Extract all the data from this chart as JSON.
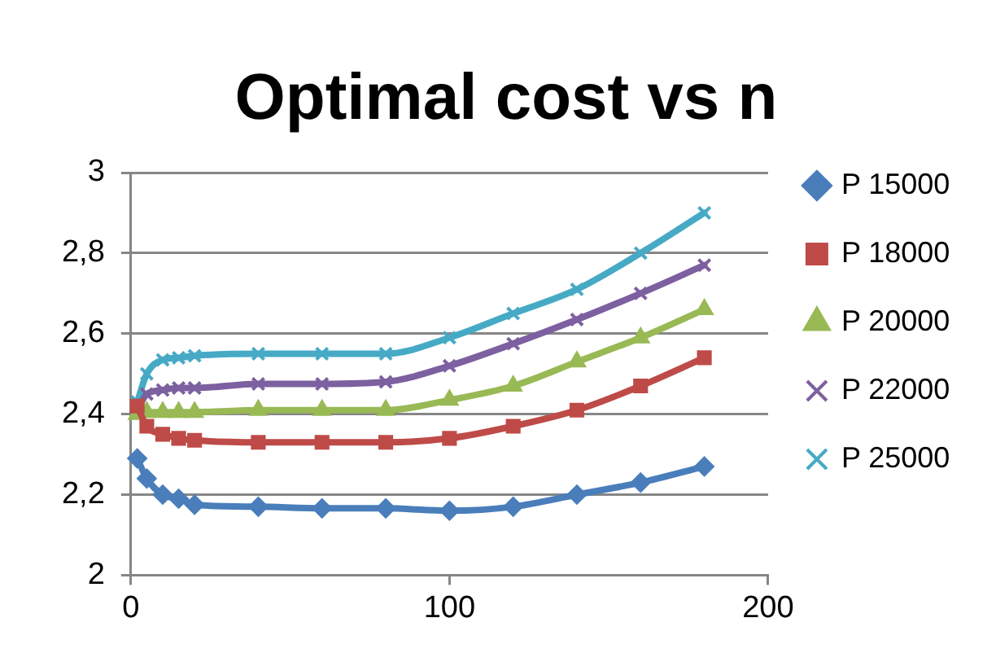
{
  "chart_data": {
    "type": "line",
    "title": "Optimal cost vs n",
    "xlim": [
      0,
      200
    ],
    "xticks": [
      0,
      100,
      200
    ],
    "ylim": [
      2,
      3
    ],
    "yticks": [
      2,
      {
        "value": 2.2,
        "label": "2,2"
      },
      {
        "value": 2.4,
        "label": "2,4"
      },
      {
        "value": 2.6,
        "label": "2,6"
      },
      {
        "value": 2.8,
        "label": "2,8"
      },
      3
    ],
    "grid": "y",
    "legend": "right",
    "x": [
      2,
      5,
      10,
      15,
      20,
      40,
      60,
      80,
      100,
      120,
      140,
      160,
      180
    ],
    "series": [
      {
        "name": "P 15000",
        "color": "#4a7ebb",
        "marker": "diamond",
        "values": [
          2.29,
          2.24,
          2.2,
          2.19,
          2.175,
          2.17,
          2.166,
          2.166,
          2.16,
          2.17,
          2.2,
          2.23,
          2.27
        ]
      },
      {
        "name": "P 18000",
        "color": "#be4b48",
        "marker": "square",
        "values": [
          2.42,
          2.37,
          2.35,
          2.34,
          2.335,
          2.33,
          2.33,
          2.33,
          2.34,
          2.37,
          2.41,
          2.47,
          2.54
        ]
      },
      {
        "name": "P 20000",
        "color": "#98b954",
        "marker": "triangle",
        "values": [
          2.4,
          2.405,
          2.405,
          2.405,
          2.405,
          2.41,
          2.41,
          2.41,
          2.435,
          2.47,
          2.53,
          2.59,
          2.66
        ]
      },
      {
        "name": "P 22000",
        "color": "#7d60a0",
        "marker": "cross",
        "values": [
          2.41,
          2.45,
          2.46,
          2.465,
          2.465,
          2.475,
          2.475,
          2.48,
          2.52,
          2.575,
          2.635,
          2.7,
          2.77
        ]
      },
      {
        "name": "P 25000",
        "color": "#46aac5",
        "marker": "cross",
        "values": [
          2.43,
          2.5,
          2.535,
          2.54,
          2.545,
          2.55,
          2.55,
          2.55,
          2.59,
          2.65,
          2.71,
          2.8,
          2.9
        ]
      }
    ]
  }
}
